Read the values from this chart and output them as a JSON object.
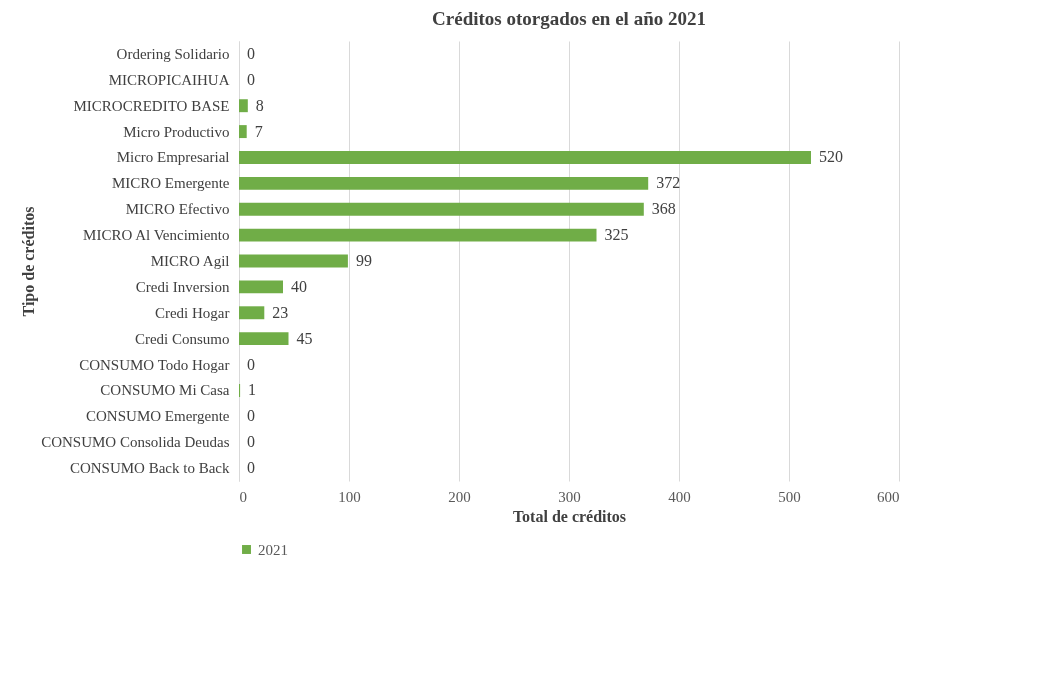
{
  "chart_data": {
    "type": "bar",
    "orientation": "horizontal",
    "title": "Créditos otorgados en el año 2021",
    "xlabel": "Total de créditos",
    "ylabel": "Tipo de créditos",
    "categories": [
      "Ordering Solidario",
      "MICROPICAIHUA",
      "MICROCREDITO BASE",
      "Micro Productivo",
      "Micro Empresarial",
      "MICRO Emergente",
      "MICRO Efectivo",
      "MICRO Al Vencimiento",
      "MICRO Agil",
      "Credi Inversion",
      "Credi Hogar",
      "Credi Consumo",
      "CONSUMO Todo Hogar",
      "CONSUMO Mi Casa",
      "CONSUMO Emergente",
      "CONSUMO Consolida Deudas",
      "CONSUMO Back to Back"
    ],
    "series": [
      {
        "name": "2021",
        "color": "#70ad47",
        "values": [
          0,
          0,
          8,
          7,
          520,
          372,
          368,
          325,
          99,
          40,
          23,
          45,
          0,
          1,
          0,
          0,
          0
        ]
      }
    ],
    "xlim": [
      0,
      600
    ],
    "xticks": [
      0,
      100,
      200,
      300,
      400,
      500,
      600
    ],
    "grid": "x",
    "data_labels": true,
    "legend": "bottom"
  }
}
